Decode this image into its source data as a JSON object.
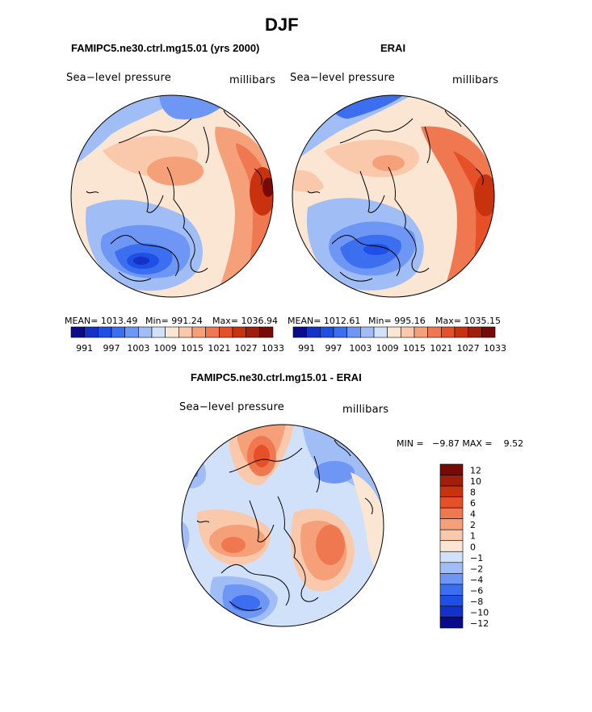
{
  "figure": {
    "title": "DJF"
  },
  "panels": [
    {
      "title": "FAMIPC5.ne30.ctrl.mg15.01 (yrs 2000)",
      "variable_label": "Sea−level pressure",
      "units_label": "millibars",
      "mean_text": "MEAN= 1013.49",
      "min_text": "Min= 991.24",
      "max_text": "Max= 1036.94"
    },
    {
      "title": "ERAI",
      "variable_label": "Sea−level pressure",
      "units_label": "millibars",
      "mean_text": "MEAN= 1012.61",
      "min_text": "Min= 995.16",
      "max_text": "Max= 1035.15"
    },
    {
      "title": "FAMIPC5.ne30.ctrl.mg15.01 - ERAI",
      "variable_label": "Sea−level pressure",
      "units_label": "millibars",
      "minmax_text": "MIN =   −9.87 MAX =    9.52"
    }
  ],
  "colorbars": {
    "absolute": {
      "ticks": [
        "991",
        "997",
        "1003",
        "1009",
        "1015",
        "1021",
        "1027",
        "1033"
      ],
      "colors": [
        "#0a0a8c",
        "#1432c8",
        "#1e50e6",
        "#3c6ef0",
        "#6e96f5",
        "#a0bef5",
        "#d2e1fa",
        "#fae6d2",
        "#fac8aa",
        "#f5a078",
        "#f07850",
        "#e65028",
        "#c8320f",
        "#a01e0a",
        "#780a05"
      ]
    },
    "difference": {
      "ticks": [
        "12",
        "10",
        "8",
        "6",
        "4",
        "2",
        "1",
        "0",
        "−1",
        "−2",
        "−4",
        "−6",
        "−8",
        "−10",
        "−12"
      ],
      "colors": [
        "#780a05",
        "#a01e0a",
        "#c8320f",
        "#e65028",
        "#f07850",
        "#f5a078",
        "#fac8aa",
        "#fae6d2",
        "#d2e1fa",
        "#a0bef5",
        "#6e96f5",
        "#3c6ef0",
        "#1e50e6",
        "#1432c8",
        "#0a0a8c"
      ]
    }
  }
}
